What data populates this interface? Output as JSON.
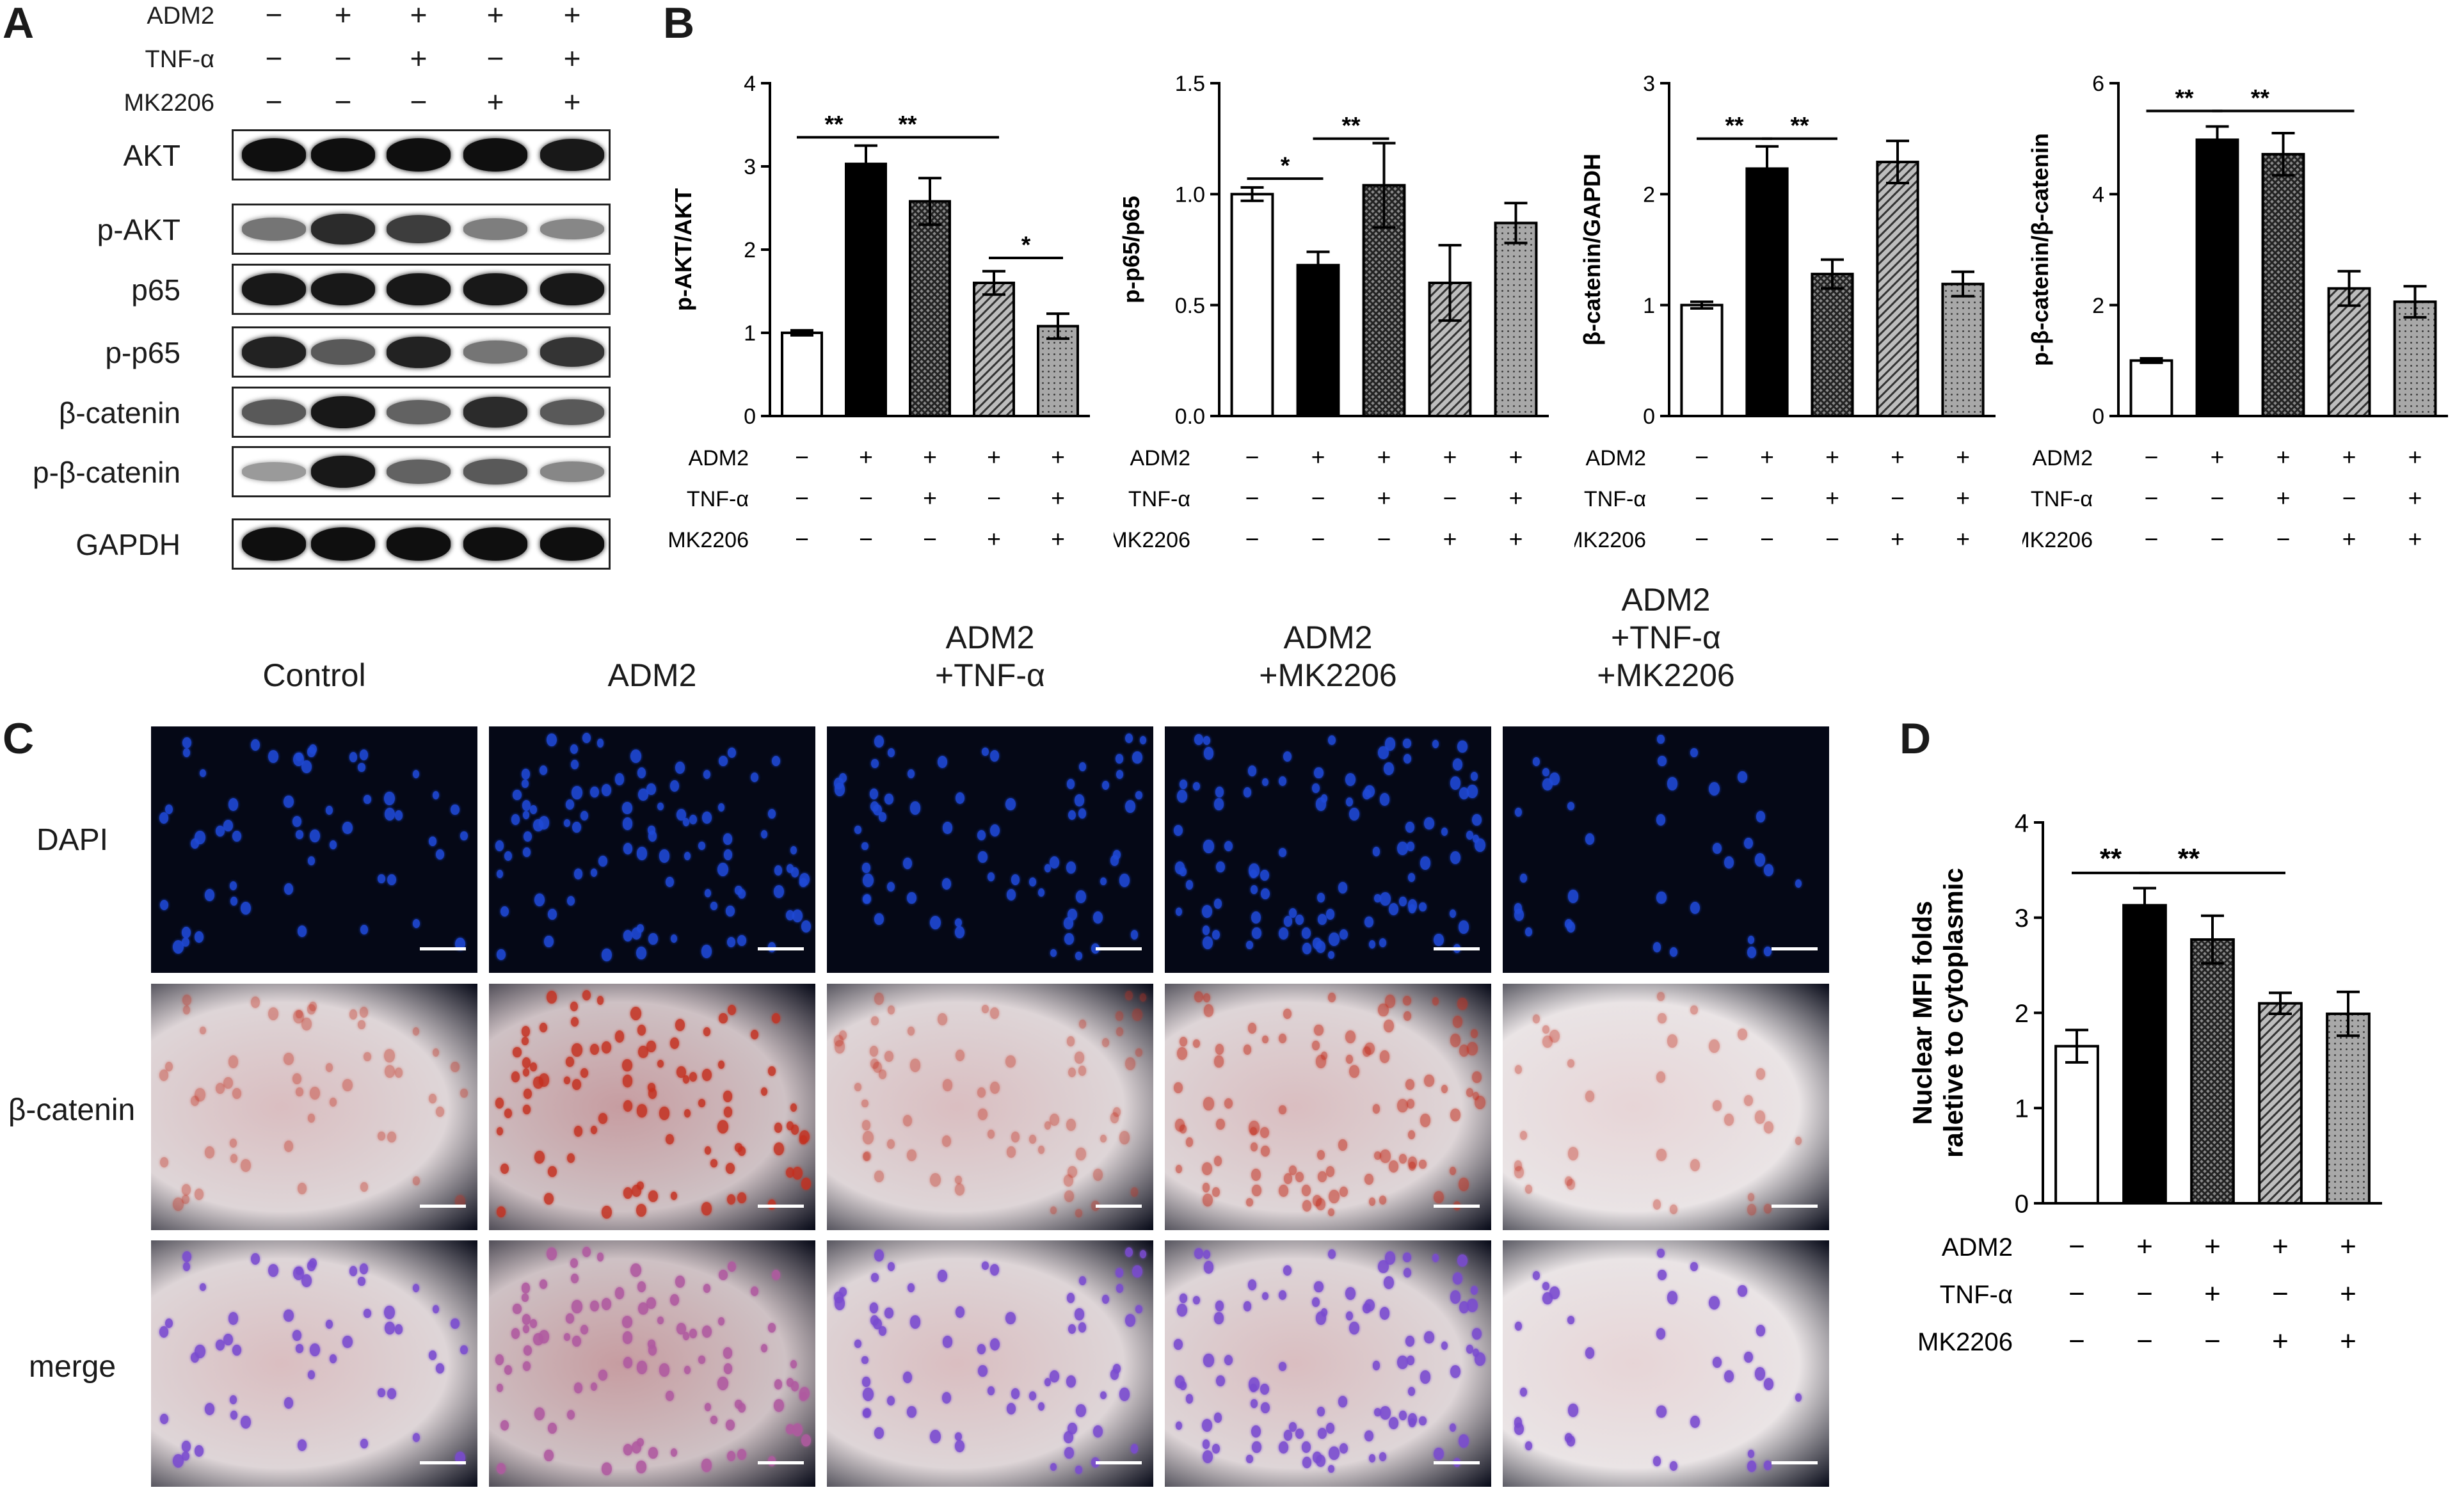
{
  "panels": {
    "A": "A",
    "B": "B",
    "C": "C",
    "D": "D"
  },
  "conditions": {
    "labels": [
      "ADM2",
      "TNF-α",
      "MK2206"
    ],
    "signs": [
      [
        "−",
        "+",
        "+",
        "+",
        "+"
      ],
      [
        "−",
        "−",
        "+",
        "−",
        "+"
      ],
      [
        "−",
        "−",
        "−",
        "+",
        "+"
      ]
    ]
  },
  "western_blot": {
    "bands": [
      "AKT",
      "p-AKT",
      "p65",
      "p-p65",
      "β-catenin",
      "p-β-catenin",
      "GAPDH"
    ],
    "intensities": [
      [
        1.0,
        1.0,
        1.0,
        1.0,
        0.95
      ],
      [
        0.45,
        0.85,
        0.75,
        0.4,
        0.35
      ],
      [
        0.95,
        0.95,
        0.95,
        0.95,
        0.95
      ],
      [
        0.9,
        0.6,
        0.9,
        0.45,
        0.8
      ],
      [
        0.6,
        0.95,
        0.55,
        0.85,
        0.6
      ],
      [
        0.25,
        0.95,
        0.55,
        0.6,
        0.35
      ],
      [
        1.0,
        1.0,
        1.0,
        1.0,
        1.0
      ]
    ]
  },
  "chart_data": [
    {
      "type": "bar",
      "ylabel": "p-AKT/AKT",
      "ylim": [
        0,
        4
      ],
      "yticks": [
        "0",
        "1",
        "2",
        "3",
        "4"
      ],
      "values": [
        1.0,
        3.03,
        2.58,
        1.6,
        1.08
      ],
      "errors": [
        0.03,
        0.22,
        0.28,
        0.14,
        0.15
      ],
      "significance": [
        {
          "from": 0,
          "to": 1,
          "label": "**",
          "y": 3.35
        },
        {
          "from": 1,
          "to": 3,
          "label": "**",
          "y": 3.35
        },
        {
          "from": 3,
          "to": 4,
          "label": "*",
          "y": 1.9
        }
      ]
    },
    {
      "type": "bar",
      "ylabel": "p-p65/p65",
      "ylim": [
        0,
        1.5
      ],
      "yticks": [
        "0.0",
        "0.5",
        "1.0",
        "1.5"
      ],
      "values": [
        1.0,
        0.68,
        1.04,
        0.6,
        0.87
      ],
      "errors": [
        0.03,
        0.06,
        0.19,
        0.17,
        0.09
      ],
      "significance": [
        {
          "from": 0,
          "to": 1,
          "label": "*",
          "y": 1.07
        },
        {
          "from": 1,
          "to": 2,
          "label": "**",
          "y": 1.25
        }
      ]
    },
    {
      "type": "bar",
      "ylabel": "β-catenin/GAPDH",
      "ylim": [
        0,
        3
      ],
      "yticks": [
        "0",
        "1",
        "2",
        "3"
      ],
      "values": [
        1.0,
        2.23,
        1.28,
        2.29,
        1.19
      ],
      "errors": [
        0.03,
        0.2,
        0.13,
        0.19,
        0.11
      ],
      "significance": [
        {
          "from": 0,
          "to": 1,
          "label": "**",
          "y": 2.5
        },
        {
          "from": 1,
          "to": 2,
          "label": "**",
          "y": 2.5
        }
      ]
    },
    {
      "type": "bar",
      "ylabel": "p-β-catenin/β-catenin",
      "ylim": [
        0,
        6
      ],
      "yticks": [
        "0",
        "2",
        "4",
        "6"
      ],
      "values": [
        1.0,
        4.98,
        4.72,
        2.3,
        2.06
      ],
      "errors": [
        0.04,
        0.24,
        0.38,
        0.31,
        0.28
      ],
      "significance": [
        {
          "from": 0,
          "to": 1,
          "label": "**",
          "y": 5.5
        },
        {
          "from": 1,
          "to": 3,
          "label": "**",
          "y": 5.5
        }
      ]
    },
    {
      "type": "bar",
      "ylabel": "Nuclear MFI folds\nraletive to cytoplasmic",
      "ylim": [
        0,
        4
      ],
      "yticks": [
        "0",
        "1",
        "2",
        "3",
        "4"
      ],
      "values": [
        1.65,
        3.13,
        2.77,
        2.1,
        1.99
      ],
      "errors": [
        0.17,
        0.18,
        0.25,
        0.11,
        0.23
      ],
      "significance": [
        {
          "from": 0,
          "to": 1,
          "label": "**",
          "y": 3.47
        },
        {
          "from": 1,
          "to": 3,
          "label": "**",
          "y": 3.47
        }
      ]
    }
  ],
  "bar_fills": [
    "white",
    "black",
    "crosshatch",
    "diagonal",
    "dots"
  ],
  "microscopy": {
    "columns": [
      "Control",
      "ADM2",
      "ADM2\n+TNF-α",
      "ADM2\n+MK2206",
      "ADM2\n+TNF-α\n+MK2206"
    ],
    "rows": [
      "DAPI",
      "β-catenin",
      "merge"
    ],
    "colors": {
      "dapi": "#1f49d6",
      "catenin": "#c43020",
      "merge": "#7a4bd0",
      "background": "#050816"
    }
  }
}
